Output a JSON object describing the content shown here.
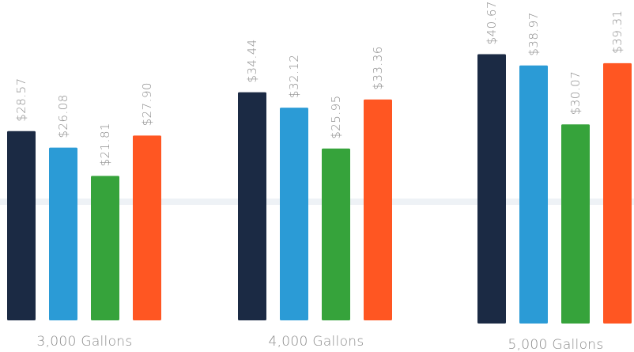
{
  "chart_data": {
    "type": "bar",
    "categories": [
      "3,000 Gallons",
      "4,000 Gallons",
      "5,000 Gallons"
    ],
    "series": [
      {
        "values": [
          28.57,
          34.44,
          40.67
        ],
        "color": "#1b2a44"
      },
      {
        "values": [
          26.08,
          32.12,
          38.97
        ],
        "color": "#2b9bd6"
      },
      {
        "values": [
          21.81,
          25.95,
          30.07
        ],
        "color": "#36a33b"
      },
      {
        "values": [
          27.9,
          33.36,
          39.31
        ],
        "color": "#ff5622"
      }
    ],
    "data_labels": [
      [
        "$28.57",
        "$26.08",
        "$21.81",
        "$27.90"
      ],
      [
        "$34.44",
        "$32.12",
        "$25.95",
        "$33.36"
      ],
      [
        "$40.67",
        "$38.97",
        "$30.07",
        "$39.31"
      ]
    ],
    "title": "",
    "xlabel": "",
    "ylabel": "",
    "ylim": [
      0,
      43
    ],
    "grid": false,
    "legend": "none",
    "value_label_orientation": "vertical"
  }
}
